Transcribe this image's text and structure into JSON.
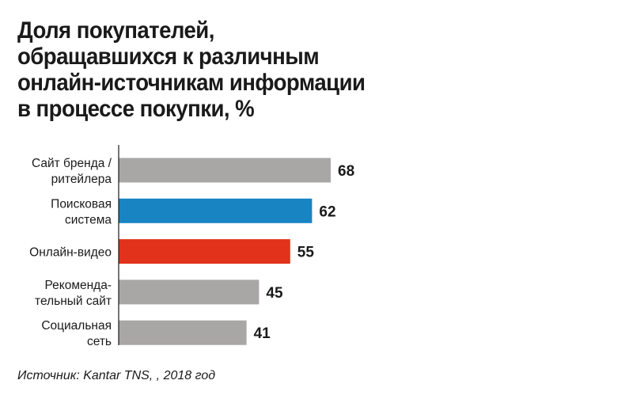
{
  "title_lines": [
    "Доля покупателей,",
    "обращавшихся к различным",
    "онлайн-источникам информации",
    "в процессе покупки, %"
  ],
  "source": "Источник: Kantar TNS, , 2018 год",
  "chart_data": {
    "type": "bar",
    "orientation": "horizontal",
    "title": "Доля покупателей, обращавшихся к различным онлайн-источникам информации в процессе покупки, %",
    "categories": [
      [
        "Сайт бренда /",
        "ритейлера"
      ],
      [
        "Поисковая",
        "система"
      ],
      [
        "Онлайн-видео"
      ],
      [
        "Рекоменда-",
        "тельный сайт"
      ],
      [
        "Социальная",
        "сеть"
      ]
    ],
    "values": [
      68,
      62,
      55,
      45,
      41
    ],
    "bar_colors": [
      "#a9a6a6",
      "#1884c2",
      "#e2321b",
      "#a9a6a6",
      "#a9a6a6"
    ],
    "value_labels_shown": true,
    "xlabel": "",
    "ylabel": "",
    "xlim": [
      0,
      68
    ],
    "grid": false,
    "legend": "none"
  }
}
